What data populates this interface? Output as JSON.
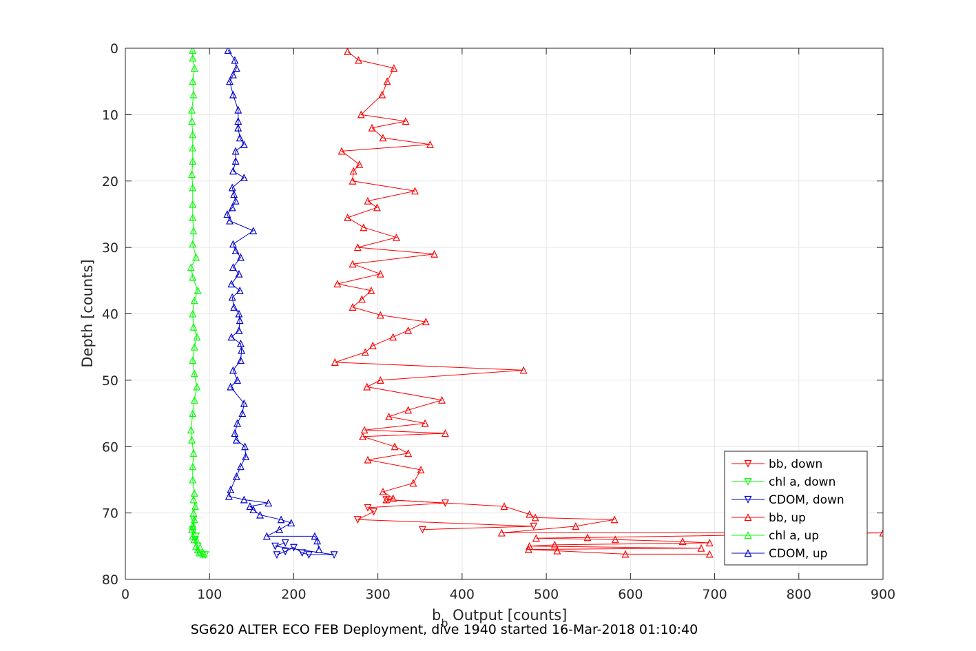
{
  "chart_data": {
    "type": "line",
    "xlabel_main": "b",
    "xlabel_sub": "b",
    "xlabel_rest": " Output [counts]",
    "ylabel": "Depth [counts]",
    "footer": "SG620 ALTER ECO FEB Deployment, dive 1940 started 16-Mar-2018 01:10:40",
    "xlim": [
      0,
      900
    ],
    "ylim": [
      0,
      80
    ],
    "y_reversed": true,
    "grid": true,
    "legend_position": "bottom-right",
    "xticks": [
      0,
      100,
      200,
      300,
      400,
      500,
      600,
      700,
      800,
      900
    ],
    "yticks": [
      0,
      10,
      20,
      30,
      40,
      50,
      60,
      70,
      80
    ],
    "xtick_labels": [
      "0",
      "100",
      "200",
      "300",
      "400",
      "500",
      "600",
      "700",
      "800",
      "900"
    ],
    "ytick_labels": [
      "0",
      "10",
      "20",
      "30",
      "40",
      "50",
      "60",
      "70",
      "80"
    ],
    "series": [
      {
        "name": "bb, down",
        "color": "#ff0000",
        "marker": "triangle-down",
        "points": [
          [
            353,
            72.5
          ],
          [
            485,
            72
          ],
          [
            276,
            71
          ],
          [
            295,
            69.8
          ],
          [
            288,
            69.2
          ],
          [
            380,
            68.5
          ],
          [
            310,
            68
          ]
        ]
      },
      {
        "name": "chl a, down",
        "color": "#00ff00",
        "marker": "triangle-down",
        "points": [
          [
            80,
            72.5
          ],
          [
            83,
            74
          ],
          [
            86,
            75
          ],
          [
            88,
            76
          ],
          [
            92,
            76.3
          ],
          [
            95,
            76.3
          ],
          [
            84,
            73.5
          ],
          [
            81,
            71
          ]
        ]
      },
      {
        "name": "CDOM, down",
        "color": "#0000cc",
        "marker": "triangle-down",
        "points": [
          [
            180,
            76.3
          ],
          [
            190,
            75.8
          ],
          [
            200,
            75.2
          ],
          [
            210,
            76
          ],
          [
            218,
            76.3
          ],
          [
            248,
            76.3
          ],
          [
            178,
            75
          ],
          [
            190,
            74.5
          ]
        ]
      },
      {
        "name": "bb, up",
        "color": "#ff0000",
        "marker": "triangle-up",
        "points": [
          [
            694,
            76.2
          ],
          [
            594,
            76.2
          ],
          [
            513,
            75.7
          ],
          [
            479,
            75.5
          ],
          [
            684,
            75.3
          ],
          [
            480,
            75
          ],
          [
            510,
            74.8
          ],
          [
            694,
            74.5
          ],
          [
            662,
            74.3
          ],
          [
            582,
            74
          ],
          [
            488,
            73.8
          ],
          [
            549,
            73.7
          ],
          [
            900,
            73
          ],
          [
            447,
            73
          ],
          [
            535,
            72
          ],
          [
            581,
            71
          ],
          [
            487,
            70.7
          ],
          [
            480,
            70.2
          ],
          [
            450,
            69
          ],
          [
            310,
            68
          ],
          [
            318,
            67.8
          ],
          [
            306,
            66.8
          ],
          [
            342,
            65.5
          ],
          [
            351,
            63.5
          ],
          [
            288,
            62
          ],
          [
            336,
            61
          ],
          [
            320,
            60
          ],
          [
            282,
            58.5
          ],
          [
            380,
            58
          ],
          [
            284,
            57.5
          ],
          [
            356,
            56.5
          ],
          [
            313,
            55.5
          ],
          [
            336,
            54.5
          ],
          [
            376,
            53
          ],
          [
            287,
            51
          ],
          [
            303,
            50
          ],
          [
            473,
            48.5
          ],
          [
            249,
            47.3
          ],
          [
            285,
            45.8
          ],
          [
            294,
            44.8
          ],
          [
            318,
            43.5
          ],
          [
            336,
            42.5
          ],
          [
            357,
            41.2
          ],
          [
            303,
            40.2
          ],
          [
            270,
            39
          ],
          [
            281,
            37.8
          ],
          [
            292,
            36.5
          ],
          [
            252,
            35.5
          ],
          [
            303,
            34
          ],
          [
            270,
            32.5
          ],
          [
            367,
            31
          ],
          [
            276,
            30
          ],
          [
            322,
            28.5
          ],
          [
            283,
            27
          ],
          [
            264,
            25.5
          ],
          [
            299,
            24
          ],
          [
            288,
            23
          ],
          [
            344,
            21.5
          ],
          [
            270,
            20
          ],
          [
            271,
            18.5
          ],
          [
            278,
            17.5
          ],
          [
            257,
            15.5
          ],
          [
            362,
            14.5
          ],
          [
            306,
            13.5
          ],
          [
            293,
            12
          ],
          [
            333,
            11
          ],
          [
            280,
            10
          ],
          [
            305,
            7
          ],
          [
            311,
            5
          ],
          [
            319,
            3
          ],
          [
            277,
            1.8
          ],
          [
            264,
            0.5
          ]
        ]
      },
      {
        "name": "chl a, up",
        "color": "#00ff00",
        "marker": "triangle-up",
        "points": [
          [
            93,
            76.2
          ],
          [
            88,
            76
          ],
          [
            86,
            75.5
          ],
          [
            84,
            75
          ],
          [
            82,
            74
          ],
          [
            80,
            73.5
          ],
          [
            79,
            72.5
          ],
          [
            80,
            72
          ],
          [
            82,
            71
          ],
          [
            81,
            70
          ],
          [
            83,
            69
          ],
          [
            81,
            68
          ],
          [
            82,
            67
          ],
          [
            80,
            65
          ],
          [
            80,
            63
          ],
          [
            81,
            61
          ],
          [
            79,
            59
          ],
          [
            78,
            57.5
          ],
          [
            80,
            55
          ],
          [
            82,
            53
          ],
          [
            85,
            51
          ],
          [
            82,
            49
          ],
          [
            80,
            47
          ],
          [
            82,
            45
          ],
          [
            85,
            43.5
          ],
          [
            81,
            42
          ],
          [
            80,
            40
          ],
          [
            82,
            38
          ],
          [
            86,
            36.5
          ],
          [
            80,
            34.5
          ],
          [
            78,
            33
          ],
          [
            84,
            31.5
          ],
          [
            80,
            29.5
          ],
          [
            81,
            27.5
          ],
          [
            80,
            25.5
          ],
          [
            80,
            23.5
          ],
          [
            80,
            21
          ],
          [
            79,
            19
          ],
          [
            80,
            17
          ],
          [
            80,
            15
          ],
          [
            80,
            13
          ],
          [
            79,
            11
          ],
          [
            79,
            9.3
          ],
          [
            81,
            7
          ],
          [
            80,
            5
          ],
          [
            82,
            3
          ],
          [
            80,
            1.5
          ],
          [
            80,
            0.3
          ]
        ]
      },
      {
        "name": "CDOM, up",
        "color": "#0000cc",
        "marker": "triangle-up",
        "points": [
          [
            230,
            75.5
          ],
          [
            228,
            74.2
          ],
          [
            225,
            73.5
          ],
          [
            168,
            73.5
          ],
          [
            183,
            72.5
          ],
          [
            197,
            71.5
          ],
          [
            185,
            71
          ],
          [
            160,
            70.3
          ],
          [
            152,
            69.5
          ],
          [
            148,
            69
          ],
          [
            170,
            68.5
          ],
          [
            141,
            68
          ],
          [
            123,
            67.5
          ],
          [
            125,
            66.5
          ],
          [
            132,
            64.5
          ],
          [
            137,
            63
          ],
          [
            143,
            61.5
          ],
          [
            142,
            60
          ],
          [
            132,
            59
          ],
          [
            130,
            58
          ],
          [
            133,
            56.5
          ],
          [
            139,
            55
          ],
          [
            141,
            53.5
          ],
          [
            125,
            51
          ],
          [
            133,
            50
          ],
          [
            128,
            48.5
          ],
          [
            137,
            47
          ],
          [
            138,
            45.5
          ],
          [
            137,
            44.5
          ],
          [
            126,
            43.5
          ],
          [
            135,
            42.5
          ],
          [
            136,
            41
          ],
          [
            135,
            40
          ],
          [
            129,
            39
          ],
          [
            127,
            37.5
          ],
          [
            136,
            36.5
          ],
          [
            126,
            35.5
          ],
          [
            135,
            34
          ],
          [
            128,
            33
          ],
          [
            137,
            31.5
          ],
          [
            131,
            30.5
          ],
          [
            128,
            29.5
          ],
          [
            152,
            27.5
          ],
          [
            124,
            26
          ],
          [
            121,
            25
          ],
          [
            127,
            24
          ],
          [
            131,
            23
          ],
          [
            129,
            22
          ],
          [
            127,
            21
          ],
          [
            141,
            19.5
          ],
          [
            128,
            18.5
          ],
          [
            131,
            17
          ],
          [
            131,
            15.5
          ],
          [
            141,
            14.5
          ],
          [
            136,
            13.5
          ],
          [
            134,
            12
          ],
          [
            134,
            11
          ],
          [
            134,
            9.3
          ],
          [
            128,
            7
          ],
          [
            124,
            5
          ],
          [
            128,
            4
          ],
          [
            132,
            3
          ],
          [
            130,
            1.8
          ],
          [
            122,
            0.3
          ]
        ]
      }
    ]
  }
}
